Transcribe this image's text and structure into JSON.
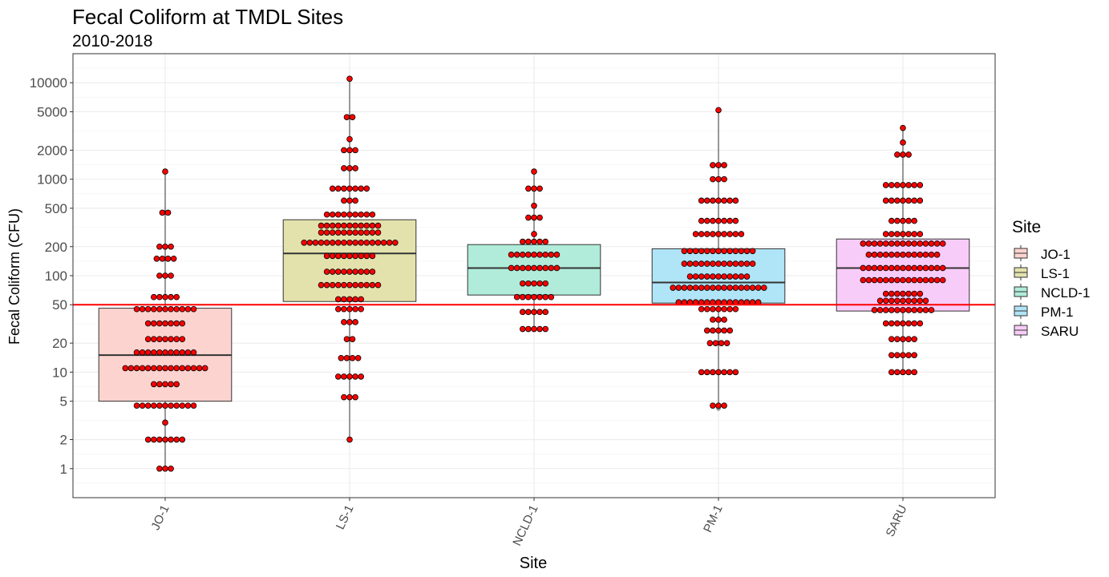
{
  "chart_data": {
    "type": "box",
    "title": "Fecal Coliform at TMDL Sites",
    "subtitle": "2010-2018",
    "xlabel": "Site",
    "ylabel": "Fecal Coliform (CFU)",
    "y_scale": "log10",
    "ylim": [
      0.5,
      20000
    ],
    "y_ticks": [
      1,
      2,
      5,
      10,
      20,
      50,
      100,
      200,
      500,
      1000,
      2000,
      5000,
      10000
    ],
    "y_tick_labels": [
      "1",
      "2",
      "5",
      "10",
      "20",
      "50",
      "100",
      "200",
      "500",
      "1000",
      "2000",
      "5000",
      "10000"
    ],
    "grid": true,
    "categories": [
      "JO-1",
      "LS-1",
      "NCLD-1",
      "PM-1",
      "SARU"
    ],
    "reference_line": {
      "y": 50,
      "color": "#ff0000"
    },
    "colors": {
      "point_fill": "#ff0000",
      "point_stroke": "#000000",
      "box_stroke": "#333333"
    },
    "legend": {
      "title": "Site",
      "position": "right",
      "items": [
        {
          "label": "JO-1",
          "color": "#fcd3cf"
        },
        {
          "label": "LS-1",
          "color": "#e3e2ad"
        },
        {
          "label": "NCLD-1",
          "color": "#b0ecd9"
        },
        {
          "label": "PM-1",
          "color": "#b0e4f7"
        },
        {
          "label": "SARU",
          "color": "#f8ccf8"
        }
      ]
    },
    "boxes": [
      {
        "site": "JO-1",
        "q1": 5,
        "median": 15,
        "q3": 46,
        "whisker_low": 1,
        "whisker_high": 1200
      },
      {
        "site": "LS-1",
        "q1": 54,
        "median": 170,
        "q3": 380,
        "whisker_low": 2,
        "whisker_high": 11000
      },
      {
        "site": "NCLD-1",
        "q1": 63,
        "median": 120,
        "q3": 210,
        "whisker_low": 28,
        "whisker_high": 1200
      },
      {
        "site": "PM-1",
        "q1": 52,
        "median": 85,
        "q3": 190,
        "whisker_low": 4.5,
        "whisker_high": 5200
      },
      {
        "site": "SARU",
        "q1": 43,
        "median": 120,
        "q3": 240,
        "whisker_low": 10,
        "whisker_high": 3400
      }
    ],
    "points": [
      {
        "site": "JO-1",
        "values": [
          {
            "y": 1,
            "n": 3
          },
          {
            "y": 2,
            "n": 7
          },
          {
            "y": 3,
            "n": 1
          },
          {
            "y": 4.5,
            "n": 11
          },
          {
            "y": 7.5,
            "n": 5
          },
          {
            "y": 11,
            "n": 15
          },
          {
            "y": 16,
            "n": 11
          },
          {
            "y": 22,
            "n": 7
          },
          {
            "y": 32,
            "n": 7
          },
          {
            "y": 45,
            "n": 11
          },
          {
            "y": 60,
            "n": 5
          },
          {
            "y": 100,
            "n": 3
          },
          {
            "y": 150,
            "n": 4
          },
          {
            "y": 200,
            "n": 3
          },
          {
            "y": 450,
            "n": 2
          },
          {
            "y": 1200,
            "n": 1
          }
        ]
      },
      {
        "site": "LS-1",
        "values": [
          {
            "y": 2,
            "n": 1
          },
          {
            "y": 5.5,
            "n": 3
          },
          {
            "y": 9,
            "n": 5
          },
          {
            "y": 14,
            "n": 4
          },
          {
            "y": 22,
            "n": 2
          },
          {
            "y": 33,
            "n": 3
          },
          {
            "y": 45,
            "n": 5
          },
          {
            "y": 57,
            "n": 5
          },
          {
            "y": 80,
            "n": 11
          },
          {
            "y": 110,
            "n": 9
          },
          {
            "y": 160,
            "n": 9
          },
          {
            "y": 220,
            "n": 17
          },
          {
            "y": 280,
            "n": 11
          },
          {
            "y": 330,
            "n": 11
          },
          {
            "y": 430,
            "n": 9
          },
          {
            "y": 600,
            "n": 3
          },
          {
            "y": 800,
            "n": 7
          },
          {
            "y": 1300,
            "n": 3
          },
          {
            "y": 2000,
            "n": 3
          },
          {
            "y": 2600,
            "n": 1
          },
          {
            "y": 4400,
            "n": 2
          },
          {
            "y": 11000,
            "n": 1
          }
        ]
      },
      {
        "site": "NCLD-1",
        "values": [
          {
            "y": 28,
            "n": 5
          },
          {
            "y": 42,
            "n": 5
          },
          {
            "y": 60,
            "n": 7
          },
          {
            "y": 83,
            "n": 5
          },
          {
            "y": 120,
            "n": 9
          },
          {
            "y": 165,
            "n": 9
          },
          {
            "y": 225,
            "n": 5
          },
          {
            "y": 270,
            "n": 1
          },
          {
            "y": 400,
            "n": 3
          },
          {
            "y": 530,
            "n": 1
          },
          {
            "y": 800,
            "n": 3
          },
          {
            "y": 1200,
            "n": 1
          }
        ]
      },
      {
        "site": "PM-1",
        "values": [
          {
            "y": 4.5,
            "n": 3
          },
          {
            "y": 10,
            "n": 7
          },
          {
            "y": 20,
            "n": 4
          },
          {
            "y": 27,
            "n": 5
          },
          {
            "y": 35,
            "n": 3
          },
          {
            "y": 45,
            "n": 7
          },
          {
            "y": 53,
            "n": 15
          },
          {
            "y": 75,
            "n": 17
          },
          {
            "y": 98,
            "n": 11
          },
          {
            "y": 133,
            "n": 13
          },
          {
            "y": 180,
            "n": 13
          },
          {
            "y": 270,
            "n": 9
          },
          {
            "y": 370,
            "n": 7
          },
          {
            "y": 600,
            "n": 7
          },
          {
            "y": 1000,
            "n": 3
          },
          {
            "y": 1400,
            "n": 3
          },
          {
            "y": 5200,
            "n": 1
          }
        ]
      },
      {
        "site": "SARU",
        "values": [
          {
            "y": 10,
            "n": 5
          },
          {
            "y": 15,
            "n": 5
          },
          {
            "y": 22,
            "n": 5
          },
          {
            "y": 32,
            "n": 7
          },
          {
            "y": 44,
            "n": 11
          },
          {
            "y": 55,
            "n": 9
          },
          {
            "y": 65,
            "n": 7
          },
          {
            "y": 90,
            "n": 15
          },
          {
            "y": 120,
            "n": 15
          },
          {
            "y": 165,
            "n": 13
          },
          {
            "y": 215,
            "n": 15
          },
          {
            "y": 270,
            "n": 7
          },
          {
            "y": 370,
            "n": 5
          },
          {
            "y": 600,
            "n": 7
          },
          {
            "y": 870,
            "n": 7
          },
          {
            "y": 1800,
            "n": 3
          },
          {
            "y": 2400,
            "n": 1
          },
          {
            "y": 3400,
            "n": 1
          }
        ]
      }
    ],
    "outliers": [
      {
        "site": "PM-1",
        "y": 4.2
      }
    ]
  }
}
